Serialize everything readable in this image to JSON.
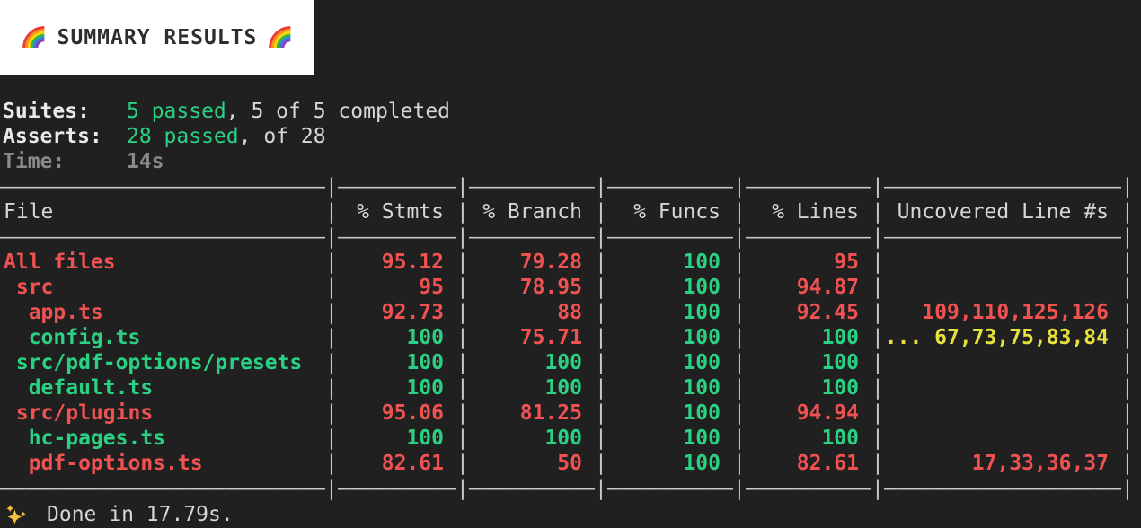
{
  "colors": {
    "bg": "#202020",
    "fg": "#d6d6d6",
    "bright": "#e9e9e9",
    "dim": "#8a8a8a",
    "border": "#c9c9c9",
    "red": "#f05252",
    "green": "#2bd183",
    "yellow": "#e6e13e",
    "banner_bg": "#ffffff",
    "banner_fg": "#2e2e2e",
    "gold": "#f3c13a"
  },
  "banner": {
    "title": "SUMMARY RESULTS",
    "icon": "rainbow-emoji"
  },
  "summary": {
    "lines": [
      {
        "label": "Suites:",
        "style": "bright",
        "parts": [
          {
            "text": "5 passed",
            "color": "green"
          },
          {
            "text": ", 5 of 5 completed",
            "color": "fg"
          }
        ]
      },
      {
        "label": "Asserts:",
        "style": "bright",
        "parts": [
          {
            "text": "28 passed",
            "color": "green"
          },
          {
            "text": ", of 28",
            "color": "fg"
          }
        ]
      },
      {
        "label": "Time:",
        "style": "dim",
        "parts": [
          {
            "text": "14s",
            "color": "dim",
            "bold": true
          }
        ]
      }
    ]
  },
  "table": {
    "headers": [
      "File",
      "% Stmts",
      "% Branch",
      "% Funcs",
      "% Lines",
      "Uncovered Line #s"
    ],
    "rows": [
      {
        "file": "All files",
        "color": "red",
        "stmts": [
          "95.12",
          "red"
        ],
        "branch": [
          "79.28",
          "red"
        ],
        "funcs": [
          "100",
          "green"
        ],
        "lines": [
          "95",
          "red"
        ],
        "uncovered": [
          "",
          "fg"
        ]
      },
      {
        "file": " src",
        "color": "red",
        "stmts": [
          "95",
          "red"
        ],
        "branch": [
          "78.95",
          "red"
        ],
        "funcs": [
          "100",
          "green"
        ],
        "lines": [
          "94.87",
          "red"
        ],
        "uncovered": [
          "",
          "fg"
        ]
      },
      {
        "file": "  app.ts",
        "color": "red",
        "stmts": [
          "92.73",
          "red"
        ],
        "branch": [
          "88",
          "red"
        ],
        "funcs": [
          "100",
          "green"
        ],
        "lines": [
          "92.45",
          "red"
        ],
        "uncovered": [
          "109,110,125,126",
          "red"
        ]
      },
      {
        "file": "  config.ts",
        "color": "green",
        "stmts": [
          "100",
          "green"
        ],
        "branch": [
          "75.71",
          "red"
        ],
        "funcs": [
          "100",
          "green"
        ],
        "lines": [
          "100",
          "green"
        ],
        "uncovered": [
          "... 67,73,75,83,84",
          "yellow"
        ]
      },
      {
        "file": " src/pdf-options/presets",
        "color": "green",
        "stmts": [
          "100",
          "green"
        ],
        "branch": [
          "100",
          "green"
        ],
        "funcs": [
          "100",
          "green"
        ],
        "lines": [
          "100",
          "green"
        ],
        "uncovered": [
          "",
          "fg"
        ]
      },
      {
        "file": "  default.ts",
        "color": "green",
        "stmts": [
          "100",
          "green"
        ],
        "branch": [
          "100",
          "green"
        ],
        "funcs": [
          "100",
          "green"
        ],
        "lines": [
          "100",
          "green"
        ],
        "uncovered": [
          "",
          "fg"
        ]
      },
      {
        "file": " src/plugins",
        "color": "red",
        "stmts": [
          "95.06",
          "red"
        ],
        "branch": [
          "81.25",
          "red"
        ],
        "funcs": [
          "100",
          "green"
        ],
        "lines": [
          "94.94",
          "red"
        ],
        "uncovered": [
          "",
          "fg"
        ]
      },
      {
        "file": "  hc-pages.ts",
        "color": "green",
        "stmts": [
          "100",
          "green"
        ],
        "branch": [
          "100",
          "green"
        ],
        "funcs": [
          "100",
          "green"
        ],
        "lines": [
          "100",
          "green"
        ],
        "uncovered": [
          "",
          "fg"
        ]
      },
      {
        "file": "  pdf-options.ts",
        "color": "red",
        "stmts": [
          "82.61",
          "red"
        ],
        "branch": [
          "50",
          "red"
        ],
        "funcs": [
          "100",
          "green"
        ],
        "lines": [
          "82.61",
          "red"
        ],
        "uncovered": [
          "17,33,36,37",
          "red"
        ]
      }
    ]
  },
  "footer": {
    "icon": "sparkles-emoji",
    "text": "Done in 17.79s."
  }
}
